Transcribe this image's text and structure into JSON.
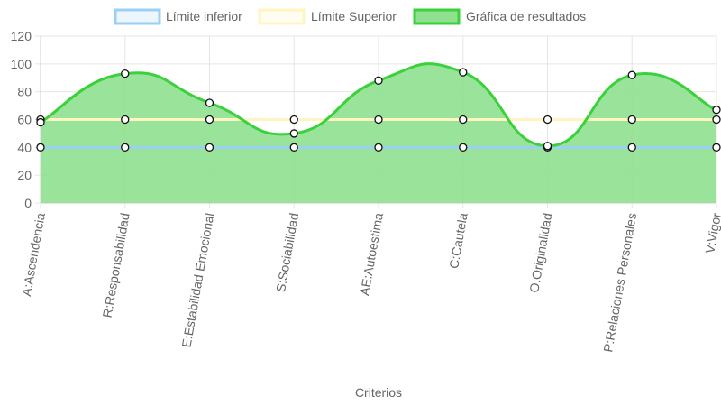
{
  "chart_data": {
    "type": "area",
    "categories": [
      "A:Ascendencia",
      "R:Responsabilidad",
      "E:Estabilidad Emocional",
      "S:Sociabilidad",
      "AE:Autoestima",
      "C:Cautela",
      "O:Originalidad",
      "P:Relaciones Personales",
      "V:Vigor"
    ],
    "series": [
      {
        "name": "Límite inferior",
        "values": [
          40,
          40,
          40,
          40,
          40,
          40,
          40,
          40,
          40
        ],
        "color": "#9ad0f5",
        "fill": false
      },
      {
        "name": "Límite Superior",
        "values": [
          60,
          60,
          60,
          60,
          60,
          60,
          60,
          60,
          60
        ],
        "color": "#fff5c2",
        "fill": false
      },
      {
        "name": "Gráfica de resultados",
        "values": [
          58,
          93,
          72,
          50,
          88,
          94,
          41,
          92,
          67
        ],
        "color": "#3ad13a",
        "fill": true,
        "fill_color": "#8fe08f"
      }
    ],
    "title": "",
    "xlabel": "Criterios",
    "ylabel": "",
    "ylim": [
      0,
      120
    ],
    "yticks": [
      0,
      20,
      40,
      60,
      80,
      100,
      120
    ],
    "grid": true,
    "legend_position": "top"
  }
}
